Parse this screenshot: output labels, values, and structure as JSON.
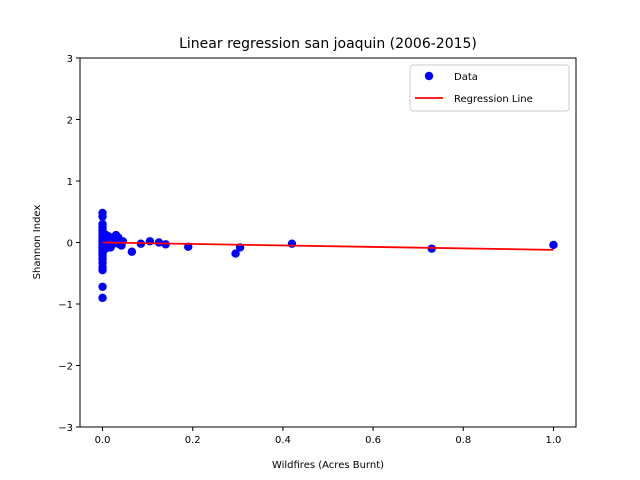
{
  "chart_data": {
    "type": "scatter",
    "title": "Linear regression san joaquin (2006-2015)",
    "xlabel": "Wildfires (Acres Burnt)",
    "ylabel": "Shannon Index",
    "xlim": [
      -0.05,
      1.05
    ],
    "ylim": [
      -3,
      3
    ],
    "xticks": [
      0.0,
      0.2,
      0.4,
      0.6,
      0.8,
      1.0
    ],
    "xtick_labels": [
      "0.0",
      "0.2",
      "0.4",
      "0.6",
      "0.8",
      "1.0"
    ],
    "yticks": [
      -3,
      -2,
      -1,
      0,
      1,
      2,
      3
    ],
    "ytick_labels": [
      "−3",
      "−2",
      "−1",
      "0",
      "1",
      "2",
      "3"
    ],
    "grid": false,
    "legend_position": "top-right",
    "series": [
      {
        "name": "Data",
        "kind": "scatter",
        "color": "#0000ff",
        "x": [
          0.0,
          0.0,
          0.0,
          0.0,
          0.0,
          0.0,
          0.0,
          0.0,
          0.0,
          0.0,
          0.0,
          0.0,
          0.0,
          0.0,
          0.0,
          0.0,
          0.0,
          0.0,
          0.0,
          0.0,
          0.0,
          0.0,
          0.0,
          0.0,
          0.0,
          0.0,
          0.003,
          0.004,
          0.005,
          0.006,
          0.007,
          0.008,
          0.009,
          0.01,
          0.011,
          0.012,
          0.013,
          0.014,
          0.015,
          0.017,
          0.018,
          0.02,
          0.022,
          0.024,
          0.025,
          0.028,
          0.03,
          0.032,
          0.035,
          0.038,
          0.042,
          0.045,
          0.065,
          0.085,
          0.105,
          0.125,
          0.14,
          0.19,
          0.295,
          0.305,
          0.42,
          0.73,
          1.0
        ],
        "y": [
          0.48,
          0.42,
          0.3,
          0.25,
          0.18,
          0.14,
          0.1,
          0.06,
          0.03,
          0.0,
          -0.03,
          -0.06,
          -0.09,
          -0.12,
          -0.15,
          -0.18,
          -0.22,
          -0.27,
          -0.33,
          -0.4,
          -0.45,
          -0.72,
          -0.9,
          0.2,
          -0.08,
          0.08,
          0.1,
          -0.05,
          0.08,
          0.02,
          -0.1,
          0.12,
          0.04,
          -0.02,
          0.06,
          -0.06,
          0.1,
          0.0,
          -0.04,
          0.05,
          -0.08,
          0.03,
          0.08,
          -0.02,
          0.04,
          0.06,
          0.12,
          0.0,
          0.08,
          -0.03,
          -0.05,
          0.02,
          -0.15,
          -0.02,
          0.02,
          0.0,
          -0.03,
          -0.07,
          -0.18,
          -0.08,
          -0.02,
          -0.1,
          -0.04
        ]
      },
      {
        "name": "Regression Line",
        "kind": "line",
        "color": "#ff0000",
        "x": [
          0.0,
          1.0
        ],
        "y": [
          0.0,
          -0.12
        ]
      }
    ]
  }
}
